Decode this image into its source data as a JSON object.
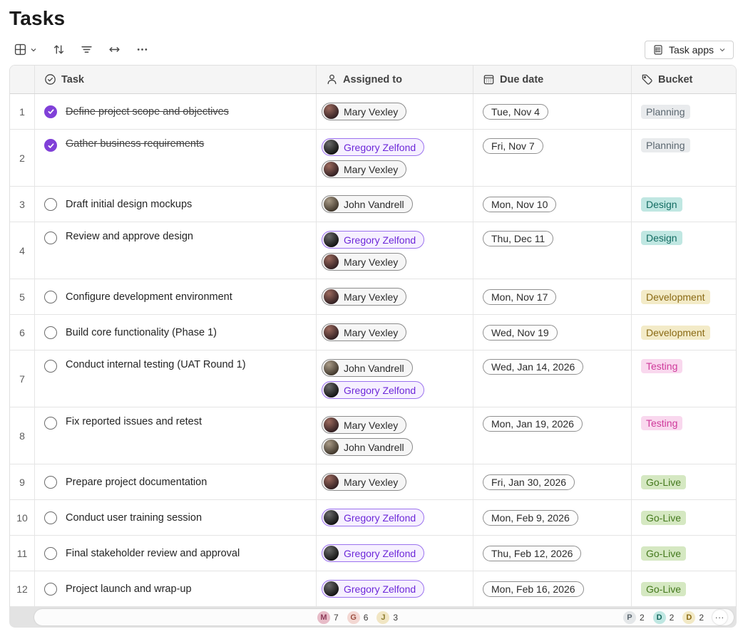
{
  "page": {
    "title": "Tasks"
  },
  "toolbar": {
    "task_apps_label": "Task apps",
    "buttons": [
      "grid-view",
      "sort",
      "filter",
      "column-width",
      "more-options"
    ]
  },
  "table": {
    "columns": {
      "task": "Task",
      "assigned": "Assigned to",
      "due": "Due date",
      "bucket": "Bucket"
    },
    "rows": [
      {
        "num": "1",
        "title": "Define project scope and objectives",
        "completed": true,
        "assignees": [
          "mary"
        ],
        "due": "Tue, Nov 4",
        "bucket": "planning"
      },
      {
        "num": "2",
        "title": "Gather business requirements",
        "completed": true,
        "assignees": [
          "gregory",
          "mary"
        ],
        "due": "Fri, Nov 7",
        "bucket": "planning"
      },
      {
        "num": "3",
        "title": "Draft initial design mockups",
        "completed": false,
        "assignees": [
          "john"
        ],
        "due": "Mon, Nov 10",
        "bucket": "design"
      },
      {
        "num": "4",
        "title": "Review and approve design",
        "completed": false,
        "assignees": [
          "gregory",
          "mary"
        ],
        "due": "Thu, Dec 11",
        "bucket": "design"
      },
      {
        "num": "5",
        "title": "Configure development environment",
        "completed": false,
        "assignees": [
          "mary"
        ],
        "due": "Mon, Nov 17",
        "bucket": "development"
      },
      {
        "num": "6",
        "title": "Build core functionality (Phase 1)",
        "completed": false,
        "assignees": [
          "mary"
        ],
        "due": "Wed, Nov 19",
        "bucket": "development"
      },
      {
        "num": "7",
        "title": "Conduct internal testing (UAT Round 1)",
        "completed": false,
        "assignees": [
          "john",
          "gregory"
        ],
        "due": "Wed, Jan 14, 2026",
        "bucket": "testing"
      },
      {
        "num": "8",
        "title": "Fix reported issues and retest",
        "completed": false,
        "assignees": [
          "mary",
          "john"
        ],
        "due": "Mon, Jan 19, 2026",
        "bucket": "testing"
      },
      {
        "num": "9",
        "title": "Prepare project documentation",
        "completed": false,
        "assignees": [
          "mary"
        ],
        "due": "Fri, Jan 30, 2026",
        "bucket": "golive"
      },
      {
        "num": "10",
        "title": "Conduct user training session",
        "completed": false,
        "assignees": [
          "gregory"
        ],
        "due": "Mon, Feb 9, 2026",
        "bucket": "golive"
      },
      {
        "num": "11",
        "title": "Final stakeholder review and approval",
        "completed": false,
        "assignees": [
          "gregory"
        ],
        "due": "Thu, Feb 12, 2026",
        "bucket": "golive"
      },
      {
        "num": "12",
        "title": "Project launch and wrap-up",
        "completed": false,
        "assignees": [
          "gregory"
        ],
        "due": "Mon, Feb 16, 2026",
        "bucket": "golive"
      }
    ]
  },
  "people": {
    "mary": {
      "name": "Mary Vexley",
      "pill": "default",
      "avatar_colors": [
        "#9c6a5e",
        "#2e1d20"
      ]
    },
    "gregory": {
      "name": "Gregory Zelfond",
      "pill": "accent",
      "avatar_colors": [
        "#6a6a6a",
        "#101010"
      ]
    },
    "john": {
      "name": "John Vandrell",
      "pill": "default",
      "avatar_colors": [
        "#a89a86",
        "#3c3328"
      ]
    }
  },
  "buckets": {
    "planning": {
      "label": "Planning",
      "bg": "#e9ebed",
      "fg": "#5b6770"
    },
    "design": {
      "label": "Design",
      "bg": "#c0e7e2",
      "fg": "#136c62"
    },
    "development": {
      "label": "Development",
      "bg": "#f3ebc8",
      "fg": "#8a6a14"
    },
    "testing": {
      "label": "Testing",
      "bg": "#f9d8ee",
      "fg": "#cf3a9b"
    },
    "golive": {
      "label": "Go-Live",
      "bg": "#d5e8c2",
      "fg": "#44791d"
    }
  },
  "summary": {
    "assignee_badges": [
      {
        "initial": "M",
        "count": "7",
        "bg": "#e7bcc8",
        "fg": "#8e3b5a"
      },
      {
        "initial": "G",
        "count": "6",
        "bg": "#f3d8d3",
        "fg": "#9c4f41"
      },
      {
        "initial": "J",
        "count": "3",
        "bg": "#f1e6c4",
        "fg": "#8c7b2e"
      }
    ],
    "bucket_badges": [
      {
        "initial": "P",
        "count": "2",
        "bg": "#e4e7e9",
        "fg": "#5b6770"
      },
      {
        "initial": "D",
        "count": "2",
        "bg": "#bfe7e2",
        "fg": "#16685e"
      },
      {
        "initial": "D",
        "count": "2",
        "bg": "#f2e9c5",
        "fg": "#8a6a14"
      }
    ],
    "more_label": "..."
  },
  "colors": {
    "accent_purple": "#8040d8",
    "accent_pill_border": "#9b72ee",
    "accent_pill_text": "#6d28d9",
    "header_bg": "#f5f5f5",
    "summary_track": "#e3e3e3"
  }
}
